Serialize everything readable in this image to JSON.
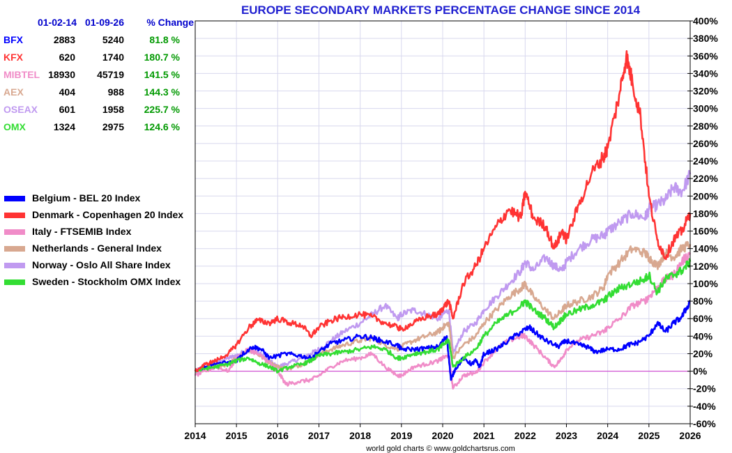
{
  "chart_data": {
    "type": "line",
    "title": "EUROPE SECONDARY MARKETS PERCENTAGE CHANGE SINCE 2014",
    "credit": "world gold charts © www.goldchartsrus.com",
    "xlabel": "",
    "ylabel": "",
    "x_ticks": [
      "2014",
      "2015",
      "2016",
      "2017",
      "2018",
      "2019",
      "2020",
      "2021",
      "2022",
      "2023",
      "2024",
      "2025",
      "2026"
    ],
    "y_ticks": [
      400,
      380,
      360,
      340,
      320,
      300,
      280,
      260,
      240,
      220,
      200,
      180,
      160,
      140,
      120,
      100,
      80,
      60,
      40,
      20,
      0,
      -20,
      -40,
      -60
    ],
    "y_tick_suffix": "%",
    "xlim": [
      2014,
      2026
    ],
    "ylim": [
      -60,
      400
    ],
    "grid": true,
    "legend_position": "left-middle",
    "zero_line_color": "#cc33cc",
    "table": {
      "headers": [
        "",
        "01-02-14",
        "01-09-26",
        "% Change"
      ],
      "rows": [
        {
          "ticker": "BFX",
          "start": "2883",
          "end": "5240",
          "change": "81.8 %",
          "color": "#0000ff"
        },
        {
          "ticker": "KFX",
          "start": "620",
          "end": "1740",
          "change": "180.7 %",
          "color": "#ff3333"
        },
        {
          "ticker": "MIBTEL",
          "start": "18930",
          "end": "45719",
          "change": "141.5 %",
          "color": "#f08cc8"
        },
        {
          "ticker": "AEX",
          "start": "404",
          "end": "988",
          "change": "144.3 %",
          "color": "#d8a890"
        },
        {
          "ticker": "OSEAX",
          "start": "601",
          "end": "1958",
          "change": "225.7 %",
          "color": "#c09af0"
        },
        {
          "ticker": "OMX",
          "start": "1324",
          "end": "2975",
          "change": "124.6 %",
          "color": "#33dd33"
        }
      ],
      "header_color": "#0000cc",
      "change_color": "#009900"
    },
    "series": [
      {
        "name": "Belgium - BEL 20 Index",
        "color": "#0000ff",
        "x": [
          2014,
          2014.25,
          2014.5,
          2015,
          2015.1,
          2015.4,
          2015.6,
          2015.8,
          2016.2,
          2016.5,
          2016.8,
          2017,
          2017.3,
          2017.6,
          2018,
          2018.3,
          2018.5,
          2018.9,
          2019,
          2019.3,
          2019.6,
          2019.9,
          2020.1,
          2020.2,
          2020.3,
          2020.5,
          2020.7,
          2020.8,
          2020.9,
          2021,
          2021.3,
          2021.6,
          2021.9,
          2022.1,
          2022.3,
          2022.5,
          2022.8,
          2023,
          2023.3,
          2023.5,
          2023.7,
          2024,
          2024.3,
          2024.5,
          2024.7,
          2025,
          2025.2,
          2025.4,
          2025.6,
          2025.8,
          2026
        ],
        "y": [
          0,
          5,
          8,
          12,
          18,
          28,
          25,
          15,
          20,
          18,
          15,
          22,
          32,
          35,
          40,
          38,
          35,
          30,
          25,
          25,
          26,
          28,
          40,
          -10,
          2,
          15,
          8,
          12,
          5,
          20,
          25,
          35,
          45,
          50,
          42,
          35,
          28,
          35,
          30,
          28,
          22,
          25,
          25,
          30,
          32,
          40,
          55,
          45,
          55,
          62,
          80
        ]
      },
      {
        "name": "Denmark - Copenhagen 20 Index",
        "color": "#ff3333",
        "x": [
          2014,
          2014.25,
          2014.5,
          2014.8,
          2015,
          2015.3,
          2015.5,
          2015.8,
          2016,
          2016.3,
          2016.6,
          2016.8,
          2017,
          2017.3,
          2017.6,
          2018,
          2018.3,
          2018.6,
          2018.9,
          2019,
          2019.3,
          2019.6,
          2019.9,
          2020,
          2020.15,
          2020.25,
          2020.5,
          2020.8,
          2021,
          2021.3,
          2021.6,
          2021.9,
          2022,
          2022.2,
          2022.5,
          2022.7,
          2022.9,
          2023,
          2023.3,
          2023.6,
          2023.9,
          2024,
          2024.3,
          2024.45,
          2024.6,
          2024.8,
          2025,
          2025.2,
          2025.4,
          2025.6,
          2025.8,
          2026
        ],
        "y": [
          0,
          8,
          12,
          20,
          30,
          50,
          58,
          55,
          60,
          55,
          52,
          40,
          50,
          58,
          62,
          65,
          62,
          55,
          50,
          48,
          55,
          62,
          65,
          72,
          80,
          60,
          100,
          120,
          140,
          165,
          185,
          175,
          205,
          175,
          165,
          140,
          160,
          150,
          190,
          225,
          245,
          255,
          320,
          360,
          330,
          290,
          200,
          150,
          130,
          150,
          160,
          180
        ]
      },
      {
        "name": "Italy - FTSEMIB Index",
        "color": "#f08cc8",
        "x": [
          2014,
          2014.25,
          2014.5,
          2014.8,
          2015,
          2015.3,
          2015.5,
          2015.8,
          2016,
          2016.2,
          2016.5,
          2016.8,
          2017,
          2017.3,
          2017.6,
          2018,
          2018.3,
          2018.6,
          2018.9,
          2019,
          2019.3,
          2019.6,
          2019.9,
          2020,
          2020.15,
          2020.25,
          2020.5,
          2020.8,
          2021,
          2021.3,
          2021.6,
          2021.9,
          2022,
          2022.2,
          2022.5,
          2022.7,
          2022.9,
          2023,
          2023.3,
          2023.6,
          2023.9,
          2024,
          2024.3,
          2024.6,
          2024.9,
          2025,
          2025.2,
          2025.4,
          2025.6,
          2025.8,
          2026
        ],
        "y": [
          -5,
          0,
          5,
          0,
          15,
          25,
          20,
          10,
          0,
          -15,
          -12,
          -10,
          -5,
          5,
          12,
          15,
          20,
          5,
          -5,
          -5,
          5,
          8,
          12,
          15,
          18,
          -20,
          -5,
          -2,
          10,
          25,
          35,
          40,
          40,
          30,
          15,
          5,
          15,
          25,
          35,
          40,
          45,
          50,
          60,
          75,
          80,
          85,
          95,
          105,
          110,
          125,
          135
        ]
      },
      {
        "name": "Netherlands - General Index",
        "color": "#d8a890",
        "x": [
          2014,
          2014.25,
          2014.5,
          2014.8,
          2015,
          2015.3,
          2015.5,
          2015.8,
          2016,
          2016.3,
          2016.6,
          2016.8,
          2017,
          2017.3,
          2017.6,
          2018,
          2018.3,
          2018.6,
          2018.9,
          2019,
          2019.3,
          2019.6,
          2019.9,
          2020,
          2020.15,
          2020.25,
          2020.5,
          2020.8,
          2021,
          2021.3,
          2021.6,
          2021.9,
          2022,
          2022.2,
          2022.5,
          2022.7,
          2022.9,
          2023,
          2023.3,
          2023.6,
          2023.9,
          2024,
          2024.3,
          2024.6,
          2024.9,
          2025,
          2025.2,
          2025.4,
          2025.6,
          2025.8,
          2026
        ],
        "y": [
          0,
          3,
          5,
          8,
          15,
          25,
          20,
          10,
          5,
          3,
          8,
          12,
          20,
          25,
          30,
          35,
          38,
          30,
          25,
          28,
          35,
          40,
          45,
          50,
          55,
          15,
          30,
          40,
          55,
          70,
          85,
          95,
          100,
          85,
          70,
          60,
          70,
          75,
          80,
          85,
          95,
          110,
          125,
          140,
          135,
          130,
          120,
          135,
          130,
          140,
          145
        ]
      },
      {
        "name": "Norway -  Oslo All Share Index",
        "color": "#c09af0",
        "x": [
          2014,
          2014.25,
          2014.5,
          2014.8,
          2015,
          2015.3,
          2015.5,
          2015.8,
          2016,
          2016.3,
          2016.6,
          2016.8,
          2017,
          2017.3,
          2017.6,
          2018,
          2018.3,
          2018.6,
          2018.9,
          2019,
          2019.3,
          2019.6,
          2019.9,
          2020,
          2020.15,
          2020.25,
          2020.5,
          2020.8,
          2021,
          2021.3,
          2021.6,
          2021.9,
          2022,
          2022.2,
          2022.5,
          2022.7,
          2022.9,
          2023,
          2023.3,
          2023.6,
          2023.9,
          2024,
          2024.3,
          2024.6,
          2024.9,
          2025,
          2025.2,
          2025.4,
          2025.6,
          2025.8,
          2026
        ],
        "y": [
          0,
          5,
          10,
          15,
          18,
          25,
          22,
          12,
          5,
          10,
          15,
          20,
          25,
          35,
          45,
          55,
          65,
          75,
          60,
          65,
          70,
          65,
          60,
          65,
          70,
          20,
          45,
          55,
          70,
          85,
          100,
          115,
          125,
          115,
          130,
          120,
          115,
          125,
          140,
          150,
          155,
          160,
          170,
          180,
          175,
          185,
          190,
          195,
          210,
          205,
          225
        ]
      },
      {
        "name": "Sweden -  Stockholm OMX Index",
        "color": "#33dd33",
        "x": [
          2014,
          2014.25,
          2014.5,
          2014.8,
          2015,
          2015.3,
          2015.5,
          2015.8,
          2016,
          2016.3,
          2016.6,
          2016.8,
          2017,
          2017.3,
          2017.6,
          2018,
          2018.3,
          2018.6,
          2018.9,
          2019,
          2019.3,
          2019.6,
          2019.9,
          2020,
          2020.15,
          2020.25,
          2020.5,
          2020.8,
          2021,
          2021.3,
          2021.6,
          2021.9,
          2022,
          2022.2,
          2022.5,
          2022.7,
          2022.9,
          2023,
          2023.3,
          2023.6,
          2023.9,
          2024,
          2024.3,
          2024.6,
          2024.9,
          2025,
          2025.2,
          2025.4,
          2025.6,
          2025.8,
          2026
        ],
        "y": [
          0,
          3,
          5,
          8,
          12,
          15,
          10,
          5,
          0,
          5,
          8,
          12,
          18,
          20,
          22,
          25,
          28,
          25,
          15,
          15,
          20,
          22,
          25,
          30,
          35,
          5,
          15,
          25,
          40,
          55,
          65,
          75,
          80,
          70,
          60,
          50,
          60,
          65,
          70,
          75,
          80,
          85,
          95,
          100,
          105,
          110,
          90,
          105,
          110,
          115,
          125
        ]
      }
    ]
  }
}
